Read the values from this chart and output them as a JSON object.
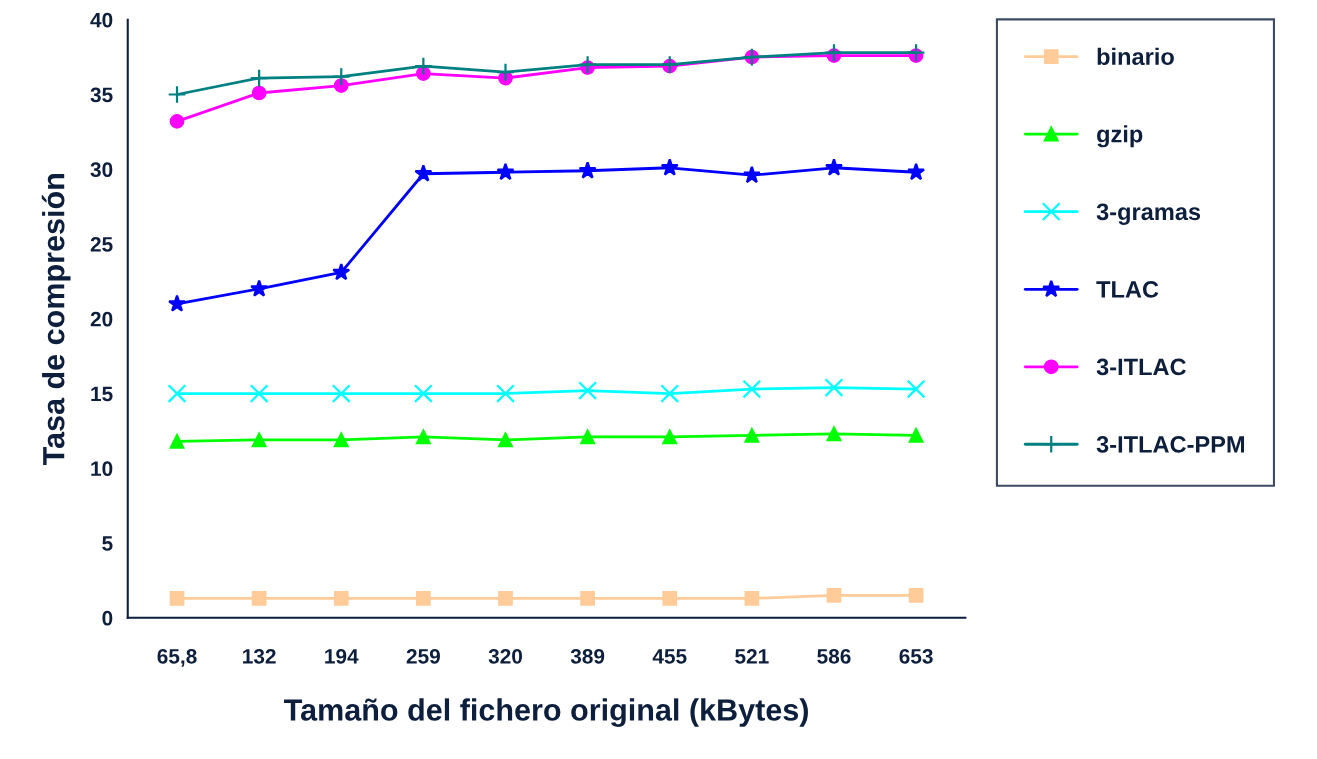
{
  "chart_data": {
    "type": "line",
    "xlabel": "Tamaño del fichero original (kBytes)",
    "ylabel": "Tasa de compresión",
    "categories": [
      "65,8",
      "132",
      "194",
      "259",
      "320",
      "389",
      "455",
      "521",
      "586",
      "653"
    ],
    "ylim": [
      0,
      40
    ],
    "yticks": [
      0,
      5,
      10,
      15,
      20,
      25,
      30,
      35,
      40
    ],
    "grid": false,
    "legend": "right",
    "series": [
      {
        "name": "binario",
        "color": "#ffcc99",
        "marker": "square",
        "values": [
          1.3,
          1.3,
          1.3,
          1.3,
          1.3,
          1.3,
          1.3,
          1.3,
          1.5,
          1.5
        ]
      },
      {
        "name": "gzip",
        "color": "#00ff00",
        "marker": "triangle",
        "values": [
          11.8,
          11.9,
          11.9,
          12.1,
          11.9,
          12.1,
          12.1,
          12.2,
          12.3,
          12.2
        ]
      },
      {
        "name": "3-gramas",
        "color": "#00ffff",
        "marker": "cross",
        "values": [
          15.0,
          15.0,
          15.0,
          15.0,
          15.0,
          15.2,
          15.0,
          15.3,
          15.4,
          15.3
        ]
      },
      {
        "name": "TLAC",
        "color": "#0000ff",
        "marker": "star",
        "values": [
          21.0,
          22.0,
          23.1,
          29.7,
          29.8,
          29.9,
          30.1,
          29.6,
          30.1,
          29.8
        ]
      },
      {
        "name": "3-ITLAC",
        "color": "#ff00ff",
        "marker": "circle",
        "values": [
          33.2,
          35.1,
          35.6,
          36.4,
          36.1,
          36.8,
          36.9,
          37.5,
          37.6,
          37.6
        ]
      },
      {
        "name": "3-ITLAC-PPM",
        "color": "#008080",
        "marker": "plus",
        "values": [
          35.0,
          36.1,
          36.2,
          36.9,
          36.5,
          37.0,
          37.0,
          37.5,
          37.8,
          37.8
        ]
      }
    ]
  }
}
